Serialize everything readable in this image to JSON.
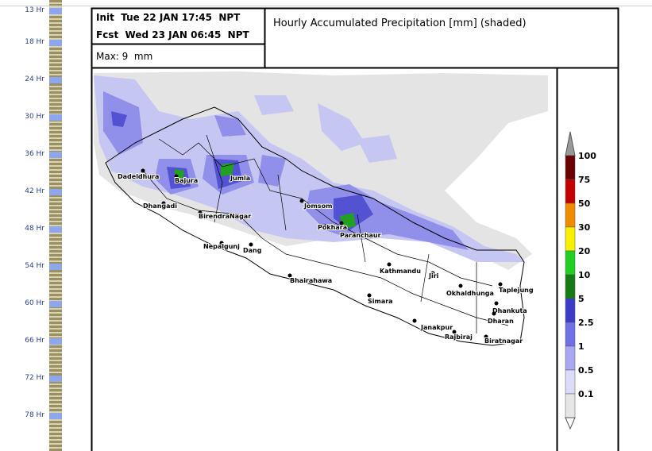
{
  "sidebar": {
    "hours": [
      "13 Hr",
      "18 Hr",
      "24 Hr",
      "30 Hr",
      "36 Hr",
      "42 Hr",
      "48 Hr",
      "54 Hr",
      "60 Hr",
      "66 Hr",
      "72 Hr",
      "78 Hr"
    ]
  },
  "header": {
    "init": "Init  Tue 22 JAN 17:45  NPT",
    "fcst": "Fcst  Wed 23 JAN 06:45  NPT",
    "max": "Max: 9  mm",
    "title": "Hourly Accumulated Precipitation [mm] (shaded)"
  },
  "legend": {
    "labels": [
      "100",
      "75",
      "50",
      "30",
      "20",
      "10",
      "5",
      "2.5",
      "1",
      "0.5",
      "0.1"
    ]
  },
  "map": {
    "cities": [
      "Dadeldhura",
      "Bajura",
      "Jumla",
      "Dhangadi",
      "BirendraNagar",
      "Jomsom",
      "Pokhara",
      "Paranchaur",
      "Nepalgunj",
      "Dang",
      "Bhairahawa",
      "Kathmandu",
      "Jiri",
      "Okhaldhunga",
      "Taplejung",
      "Simara",
      "Dhankuta",
      "Dharan",
      "Janakpur",
      "Rajbiraj",
      "Biratnagar"
    ]
  }
}
